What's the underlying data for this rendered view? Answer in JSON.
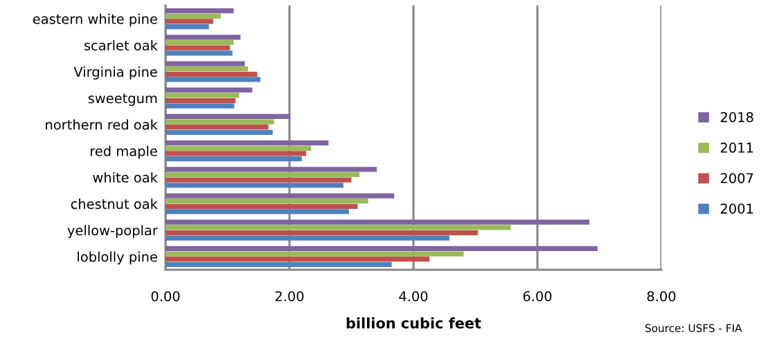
{
  "chart_data": {
    "type": "bar",
    "orientation": "horizontal",
    "xlabel": "billion cubic feet",
    "categories": [
      "eastern white pine",
      "scarlet oak",
      "Virginia pine",
      "sweetgum",
      "northern red oak",
      "red maple",
      "white oak",
      "chestnut oak",
      "yellow-poplar",
      "loblolly pine"
    ],
    "series": [
      {
        "name": "2001",
        "color": "#4f81bd",
        "values": [
          0.7,
          1.08,
          1.53,
          1.11,
          1.73,
          2.2,
          2.87,
          2.96,
          4.58,
          3.65
        ]
      },
      {
        "name": "2007",
        "color": "#c0504d",
        "values": [
          0.77,
          1.04,
          1.48,
          1.13,
          1.66,
          2.27,
          3.0,
          3.1,
          5.04,
          4.26
        ]
      },
      {
        "name": "2011",
        "color": "#9bbb59",
        "values": [
          0.89,
          1.1,
          1.33,
          1.19,
          1.75,
          2.35,
          3.13,
          3.27,
          5.57,
          4.81
        ]
      },
      {
        "name": "2018",
        "color": "#8064a2",
        "values": [
          1.1,
          1.21,
          1.28,
          1.4,
          2.01,
          2.63,
          3.41,
          3.69,
          6.84,
          6.97
        ]
      }
    ],
    "xlim": [
      0,
      8
    ],
    "xticks": [
      {
        "value": 0,
        "label": "0.00"
      },
      {
        "value": 2,
        "label": "2.00"
      },
      {
        "value": 4,
        "label": "4.00"
      },
      {
        "value": 6,
        "label": "6.00"
      },
      {
        "value": 8,
        "label": "8.00"
      }
    ],
    "grid": "x",
    "legend": "right",
    "annotations": [
      "Source: USFS - FIA"
    ]
  }
}
